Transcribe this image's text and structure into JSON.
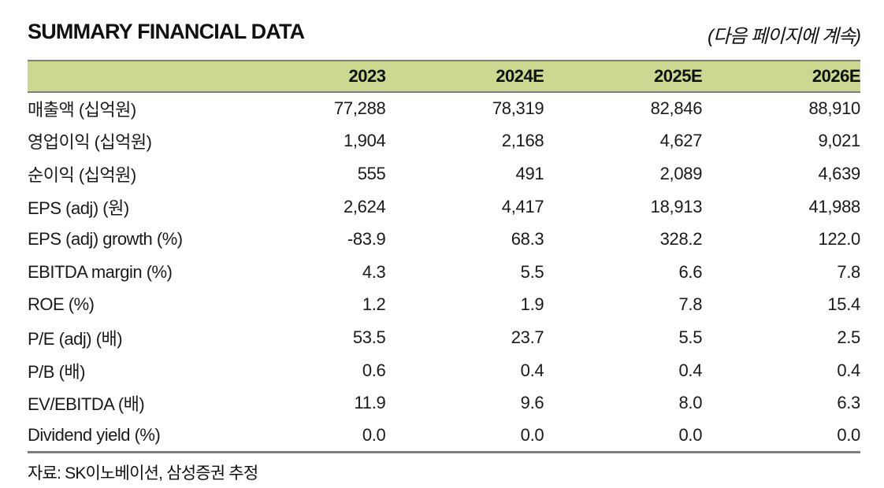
{
  "page": {
    "title": "SUMMARY FINANCIAL DATA",
    "continuation_note": "(다음 페이지에 계속)",
    "source": "자료: SK이노베이션, 삼성증권 추정"
  },
  "table": {
    "columns": [
      "",
      "2023",
      "2024E",
      "2025E",
      "2026E"
    ],
    "rows": [
      {
        "label": "매출액 (십억원)",
        "values": [
          "77,288",
          "78,319",
          "82,846",
          "88,910"
        ]
      },
      {
        "label": "영업이익 (십억원)",
        "values": [
          "1,904",
          "2,168",
          "4,627",
          "9,021"
        ]
      },
      {
        "label": "순이익 (십억원)",
        "values": [
          "555",
          "491",
          "2,089",
          "4,639"
        ]
      },
      {
        "label": "EPS (adj) (원)",
        "values": [
          "2,624",
          "4,417",
          "18,913",
          "41,988"
        ]
      },
      {
        "label": "EPS (adj) growth (%)",
        "values": [
          "-83.9",
          "68.3",
          "328.2",
          "122.0"
        ]
      },
      {
        "label": "EBITDA margin (%)",
        "values": [
          "4.3",
          "5.5",
          "6.6",
          "7.8"
        ]
      },
      {
        "label": "ROE (%)",
        "values": [
          "1.2",
          "1.9",
          "7.8",
          "15.4"
        ]
      },
      {
        "label": "P/E (adj) (배)",
        "values": [
          "53.5",
          "23.7",
          "5.5",
          "2.5"
        ]
      },
      {
        "label": "P/B (배)",
        "values": [
          "0.6",
          "0.4",
          "0.4",
          "0.4"
        ]
      },
      {
        "label": "EV/EBITDA (배)",
        "values": [
          "11.9",
          "9.6",
          "8.0",
          "6.3"
        ]
      },
      {
        "label": "Dividend yield (%)",
        "values": [
          "0.0",
          "0.0",
          "0.0",
          "0.0"
        ]
      }
    ]
  },
  "colors": {
    "header_bg": "#cbd892",
    "border_gray": "#7e7e7e",
    "text": "#1a1a1a"
  }
}
